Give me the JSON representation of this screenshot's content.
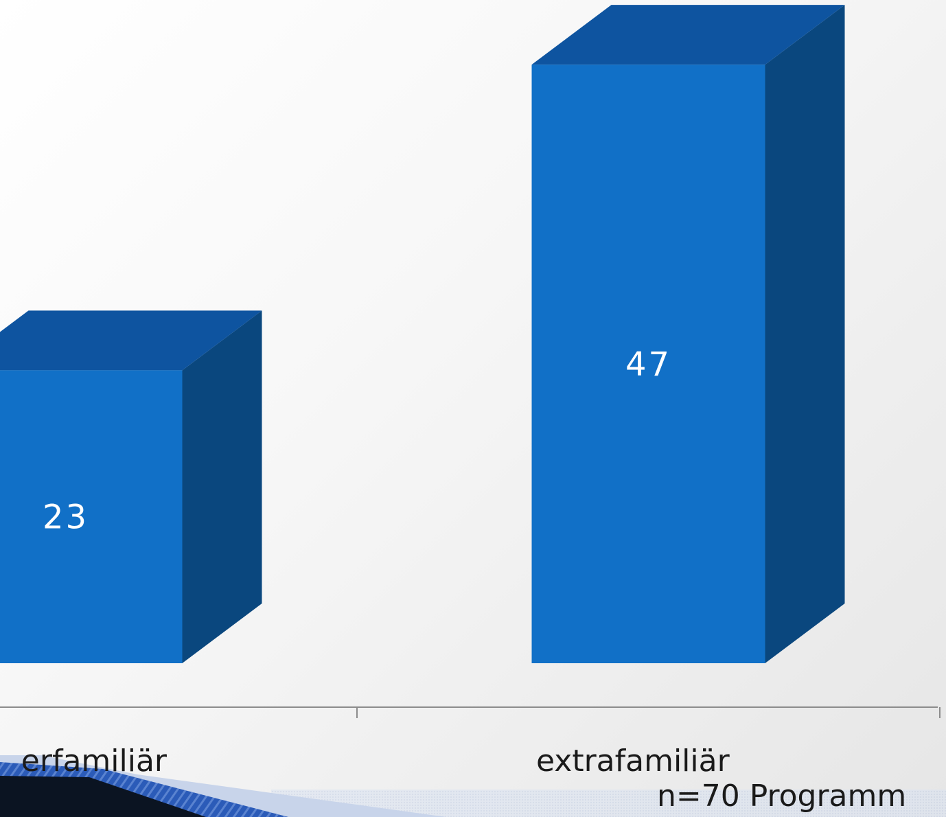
{
  "chart_data": {
    "type": "bar",
    "style": "3d-column",
    "categories": [
      "innerfamiliär",
      "extrafamiliär"
    ],
    "visible_category_labels": [
      "erfamiliär",
      "extrafamiliär"
    ],
    "values": [
      23,
      47
    ],
    "data_labels": [
      "23",
      "47"
    ],
    "note": "n=70 Programm",
    "colors": {
      "bar_front": "#1170c7",
      "bar_top": "#0e54a0",
      "bar_side": "#0a477e",
      "data_label": "#ffffff",
      "axis": "#8c8c8c",
      "text": "#1a1a1a"
    },
    "ylim": [
      0,
      50
    ],
    "grid": false,
    "legend": "none"
  }
}
